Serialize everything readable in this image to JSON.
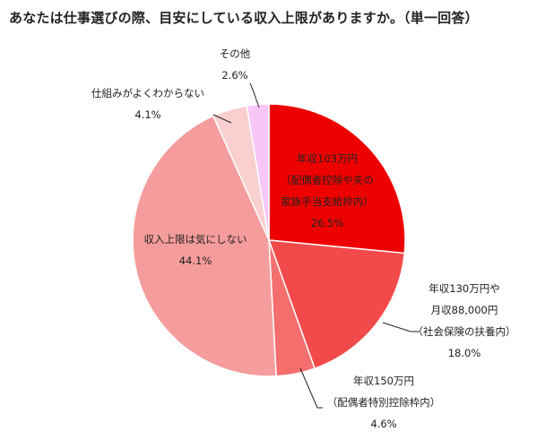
{
  "chart_data": {
    "type": "pie",
    "title": "あなたは仕事選びの際、目安にしている収入上限がありますか。（単一回答）",
    "slices": [
      {
        "label_lines": [
          "年収103万円",
          "（配偶者控除や夫の",
          "家族手当支給枠内）"
        ],
        "value": 26.5,
        "value_label": "26.5%",
        "color": "#ee0000"
      },
      {
        "label_lines": [
          "年収130万円や",
          "月収88,000円",
          "（社会保険の扶養内）"
        ],
        "value": 18.0,
        "value_label": "18.0%",
        "color": "#f24a4a"
      },
      {
        "label_lines": [
          "年収150万円",
          "（配偶者特別控除枠内）"
        ],
        "value": 4.6,
        "value_label": "4.6%",
        "color": "#f46e6e"
      },
      {
        "label_lines": [
          "収入上限は気にしない"
        ],
        "value": 44.1,
        "value_label": "44.1%",
        "color": "#f59c9c"
      },
      {
        "label_lines": [
          "仕組みがよくわからない"
        ],
        "value": 4.1,
        "value_label": "4.1%",
        "color": "#f9cfcf"
      },
      {
        "label_lines": [
          "その他"
        ],
        "value": 2.6,
        "value_label": "2.6%",
        "color": "#f7c6f7"
      }
    ]
  }
}
